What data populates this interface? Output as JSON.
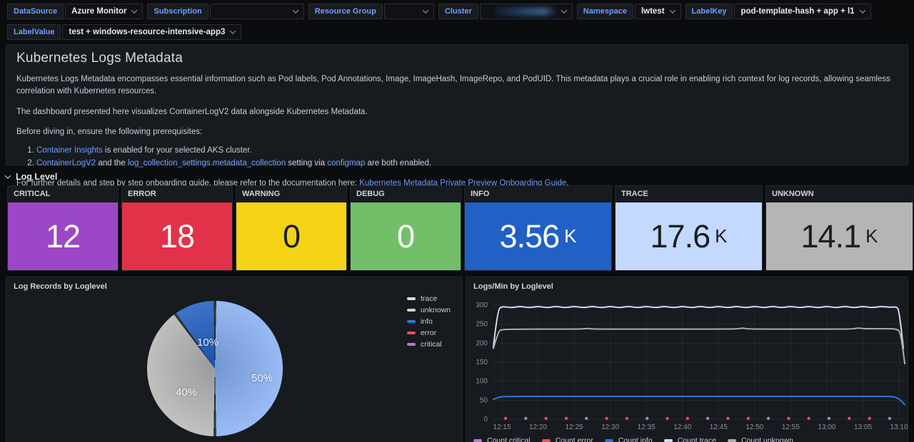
{
  "toolbar": {
    "rows": [
      [
        {
          "name": "datasource",
          "label": "DataSource",
          "value": "Azure Monitor",
          "chevron": true
        },
        {
          "name": "subscription",
          "label": "Subscription",
          "value": "",
          "chevron": true
        },
        {
          "name": "resource-group",
          "label": "Resource Group",
          "value": "",
          "chevron": true
        },
        {
          "name": "cluster",
          "label": "Cluster",
          "value": "",
          "redacted": true,
          "chevron": true
        },
        {
          "name": "namespace",
          "label": "Namespace",
          "value": "lwtest",
          "chevron": true
        },
        {
          "name": "labelkey",
          "label": "LabelKey",
          "value": "pod-template-hash + app + l1",
          "chevron": true
        }
      ],
      [
        {
          "name": "labelvalue",
          "label": "LabelValue",
          "value": "test + windows-resource-intensive-app3",
          "chevron": true
        }
      ]
    ]
  },
  "intro": {
    "title": "Kubernetes Logs Metadata",
    "p1": "Kubernetes Logs Metadata encompasses essential information such as Pod labels, Pod Annotations, Image, ImageHash, ImageRepo, and PodUID. This metadata plays a crucial role in enabling rich context for log records, allowing seamless correlation with Kubernetes resources.",
    "p2": "The dashboard presented here visualizes ContainerLogV2 data alongside Kubernetes Metadata.",
    "p3": "Before diving in, ensure the following prerequisites:",
    "prerequisites": [
      {
        "segments": [
          {
            "t": "Container Insights",
            "link": true
          },
          {
            "t": " is enabled for your selected AKS cluster."
          }
        ]
      },
      {
        "segments": [
          {
            "t": "ContainerLogV2",
            "link": true
          },
          {
            "t": " and the "
          },
          {
            "t": "log_collection_settings.metadata_collection",
            "link": true
          },
          {
            "t": " setting via "
          },
          {
            "t": "configmap",
            "link": true
          },
          {
            "t": " are both enabled."
          }
        ]
      }
    ],
    "footer": {
      "segments": [
        {
          "t": "For further details and step by step onboarding guide, please refer to the documentation here: "
        },
        {
          "t": "Kubernetes Metadata Private Preview Onboarding Guide",
          "link": true
        },
        {
          "t": "."
        }
      ]
    }
  },
  "row_header": {
    "label": "Log Level"
  },
  "stats": [
    {
      "title": "CRITICAL",
      "value": "12",
      "suffix": "",
      "bg": "#9c47c5",
      "fg": "#ffffff"
    },
    {
      "title": "ERROR",
      "value": "18",
      "suffix": "",
      "bg": "#e23249",
      "fg": "#ffffff"
    },
    {
      "title": "WARNING",
      "value": "0",
      "suffix": "",
      "bg": "#f4d216",
      "fg": "#1b1d21"
    },
    {
      "title": "DEBUG",
      "value": "0",
      "suffix": "",
      "bg": "#73bf69",
      "fg": "#ffffff"
    },
    {
      "title": "INFO",
      "value": "3.56",
      "suffix": "K",
      "bg": "#2160c4",
      "fg": "#ffffff"
    },
    {
      "title": "TRACE",
      "value": "17.6",
      "suffix": "K",
      "bg": "#c4d9ff",
      "fg": "#1b1d21"
    },
    {
      "title": "UNKNOWN",
      "value": "14.1",
      "suffix": "K",
      "bg": "#b5b5b3",
      "fg": "#1b1d21"
    }
  ],
  "chart_data": [
    {
      "type": "pie",
      "title": "Log Records by Loglevel",
      "legend_position": "right",
      "start_angle": "top",
      "direction": "clockwise",
      "series": [
        {
          "name": "trace",
          "percent": 50,
          "color": "#8ab4f8",
          "label": "50%"
        },
        {
          "name": "unknown",
          "percent": 40,
          "color": "#b9b9b7",
          "label": "40%"
        },
        {
          "name": "info",
          "percent": 10,
          "color": "#1f60c4",
          "label": "10%"
        },
        {
          "name": "error",
          "percent": 0,
          "color": "#f2495c",
          "label": ""
        },
        {
          "name": "critical",
          "percent": 0,
          "color": "#b877d9",
          "label": ""
        }
      ],
      "legend": [
        {
          "name": "trace",
          "color": "#cdddf9"
        },
        {
          "name": "unknown",
          "color": "#cdced2"
        },
        {
          "name": "info",
          "color": "#3274d9"
        },
        {
          "name": "error",
          "color": "#f2495c"
        },
        {
          "name": "critical",
          "color": "#b877d9"
        }
      ]
    },
    {
      "type": "line",
      "title": "Logs/Min by Loglevel",
      "grid": true,
      "legend_position": "bottom",
      "ylim": [
        0,
        300
      ],
      "y_ticks": [
        0,
        50,
        100,
        150,
        200,
        250,
        300
      ],
      "x_base_time": "12:12",
      "x_ticks": [
        {
          "minute": 3,
          "label": "12:15"
        },
        {
          "minute": 8,
          "label": "12:20"
        },
        {
          "minute": 13,
          "label": "12:25"
        },
        {
          "minute": 18,
          "label": "12:30"
        },
        {
          "minute": 23,
          "label": "12:35"
        },
        {
          "minute": 28,
          "label": "12:40"
        },
        {
          "minute": 33,
          "label": "12:45"
        },
        {
          "minute": 38,
          "label": "12:50"
        },
        {
          "minute": 43,
          "label": "12:55"
        },
        {
          "minute": 48,
          "label": "13:00"
        },
        {
          "minute": 53,
          "label": "13:05"
        },
        {
          "minute": 58,
          "label": "13:10"
        }
      ],
      "series": [
        {
          "name": "Count trace",
          "color": "#cdddf9",
          "style": "line",
          "points": [
            [
              1.8,
              190
            ],
            [
              2.4,
              288
            ],
            [
              3,
              297
            ],
            [
              4.25,
              293
            ],
            [
              5.5,
              297
            ],
            [
              6.75,
              293
            ],
            [
              8,
              297
            ],
            [
              9.25,
              293
            ],
            [
              10.5,
              297
            ],
            [
              11.75,
              293
            ],
            [
              13,
              297
            ],
            [
              14.25,
              293
            ],
            [
              15.5,
              297
            ],
            [
              16.75,
              293
            ],
            [
              18,
              297
            ],
            [
              19.25,
              293
            ],
            [
              20.5,
              297
            ],
            [
              21.75,
              293
            ],
            [
              23,
              297
            ],
            [
              24.25,
              293
            ],
            [
              25.5,
              297
            ],
            [
              26.75,
              293
            ],
            [
              28,
              297
            ],
            [
              29.25,
              293
            ],
            [
              30.5,
              297
            ],
            [
              31.75,
              293
            ],
            [
              33,
              297
            ],
            [
              34.25,
              293
            ],
            [
              35.5,
              297
            ],
            [
              36.75,
              293
            ],
            [
              38,
              297
            ],
            [
              39.25,
              293
            ],
            [
              40.5,
              297
            ],
            [
              41.75,
              293
            ],
            [
              43,
              297
            ],
            [
              44.25,
              293
            ],
            [
              45.5,
              297
            ],
            [
              46.75,
              293
            ],
            [
              48,
              297
            ],
            [
              49.25,
              293
            ],
            [
              50.5,
              297
            ],
            [
              51.75,
              293
            ],
            [
              53,
              297
            ],
            [
              54.25,
              293
            ],
            [
              55.5,
              297
            ],
            [
              56.75,
              294
            ],
            [
              57.6,
              296
            ],
            [
              58,
              288
            ],
            [
              58.6,
              186
            ]
          ]
        },
        {
          "name": "Count unknown",
          "color": "#aeaeac",
          "style": "line",
          "points": [
            [
              1.8,
              186
            ],
            [
              2.5,
              232
            ],
            [
              3,
              236
            ],
            [
              6,
              237
            ],
            [
              10,
              237
            ],
            [
              14,
              237
            ],
            [
              14.8,
              239
            ],
            [
              15.6,
              237
            ],
            [
              20,
              237
            ],
            [
              25,
              237
            ],
            [
              30,
              237
            ],
            [
              35.5,
              237
            ],
            [
              36.3,
              240
            ],
            [
              37.1,
              237
            ],
            [
              42,
              237
            ],
            [
              47,
              237
            ],
            [
              51.5,
              237
            ],
            [
              52.3,
              240
            ],
            [
              53.1,
              238
            ],
            [
              56,
              238
            ],
            [
              57.6,
              238
            ],
            [
              58.2,
              230
            ],
            [
              58.8,
              146
            ]
          ]
        },
        {
          "name": "Count info",
          "color": "#3274d9",
          "style": "line",
          "points": [
            [
              1.8,
              52
            ],
            [
              2.5,
              58
            ],
            [
              3.5,
              60
            ],
            [
              10,
              60
            ],
            [
              20,
              60
            ],
            [
              30,
              60
            ],
            [
              40,
              60
            ],
            [
              50,
              60
            ],
            [
              56.5,
              60
            ],
            [
              57.3,
              59
            ],
            [
              58,
              54
            ],
            [
              58.8,
              38
            ]
          ]
        },
        {
          "name": "Count error",
          "color": "#f2495c",
          "style": "points",
          "points": [
            [
              3.5,
              2
            ],
            [
              9.1,
              2
            ],
            [
              11.9,
              2
            ],
            [
              17.5,
              2
            ],
            [
              20.3,
              2
            ],
            [
              25.9,
              2
            ],
            [
              28.7,
              2
            ],
            [
              34.3,
              2
            ],
            [
              37.1,
              2
            ],
            [
              42.7,
              2
            ],
            [
              45.5,
              2
            ],
            [
              51.1,
              2
            ],
            [
              53.9,
              2
            ]
          ]
        },
        {
          "name": "Count critical",
          "color": "#b877d9",
          "style": "points",
          "points": [
            [
              6.3,
              2
            ],
            [
              14.7,
              2
            ],
            [
              23.1,
              2
            ],
            [
              31.5,
              2
            ],
            [
              39.9,
              2
            ],
            [
              48.3,
              2
            ],
            [
              56.7,
              2
            ]
          ]
        }
      ],
      "legend": [
        {
          "name": "Count critical",
          "color": "#b877d9"
        },
        {
          "name": "Count error",
          "color": "#f2495c"
        },
        {
          "name": "Count info",
          "color": "#3274d9"
        },
        {
          "name": "Count trace",
          "color": "#cdddf9"
        },
        {
          "name": "Count unknown",
          "color": "#aeaeac"
        }
      ]
    }
  ]
}
